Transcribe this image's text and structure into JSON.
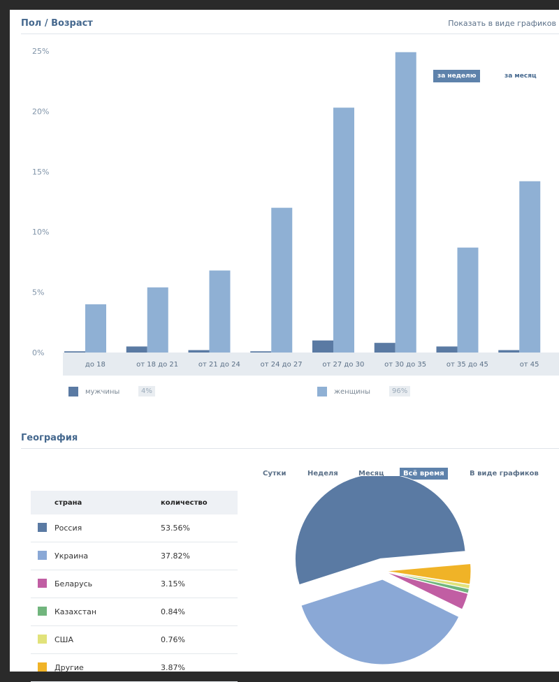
{
  "age_section": {
    "title": "Пол / Возраст",
    "show_charts_link": "Показать в виде графиков",
    "toggles": [
      "за неделю",
      "за месяц"
    ],
    "legend": [
      {
        "name": "мужчины",
        "percent": "4%",
        "color": "#5a7aa3"
      },
      {
        "name": "женщины",
        "percent": "96%",
        "color": "#8fb0d4"
      }
    ]
  },
  "geo_section": {
    "title": "География",
    "tabs": [
      "Сутки",
      "Неделя",
      "Месяц",
      "Всё время",
      "В виде графиков"
    ],
    "table_headers": [
      "страна",
      "количество"
    ]
  },
  "chart_data": [
    {
      "type": "bar",
      "categories": [
        "до 18",
        "от 18 до 21",
        "от 21 до 24",
        "от 24 до 27",
        "от 27 до 30",
        "от 30 до 35",
        "от 35 до 45",
        "от 45"
      ],
      "series": [
        {
          "name": "мужчины",
          "values": [
            0.1,
            0.5,
            0.2,
            0.1,
            1.0,
            0.8,
            0.5,
            0.2
          ],
          "color": "#5a7aa3"
        },
        {
          "name": "женщины",
          "values": [
            4.0,
            5.4,
            6.8,
            12.0,
            20.3,
            24.9,
            8.7,
            14.2
          ],
          "color": "#8fb0d4"
        }
      ],
      "yticks": [
        "0%",
        "5%",
        "10%",
        "15%",
        "20%",
        "25%"
      ],
      "ylim": [
        0,
        25
      ],
      "legend": "bottom",
      "grid": false
    },
    {
      "type": "pie",
      "labels": [
        "Россия",
        "Украина",
        "Беларусь",
        "Казахстан",
        "США",
        "Другие"
      ],
      "display_values": [
        "53.56%",
        "37.82%",
        "3.15%",
        "0.84%",
        "0.76%",
        "3.87%"
      ],
      "values": [
        53.56,
        37.82,
        3.15,
        0.84,
        0.76,
        3.87
      ],
      "colors": [
        "#5a7aa3",
        "#8aa8d6",
        "#c15ea3",
        "#71b57d",
        "#e1e27a",
        "#f0b327"
      ]
    }
  ]
}
